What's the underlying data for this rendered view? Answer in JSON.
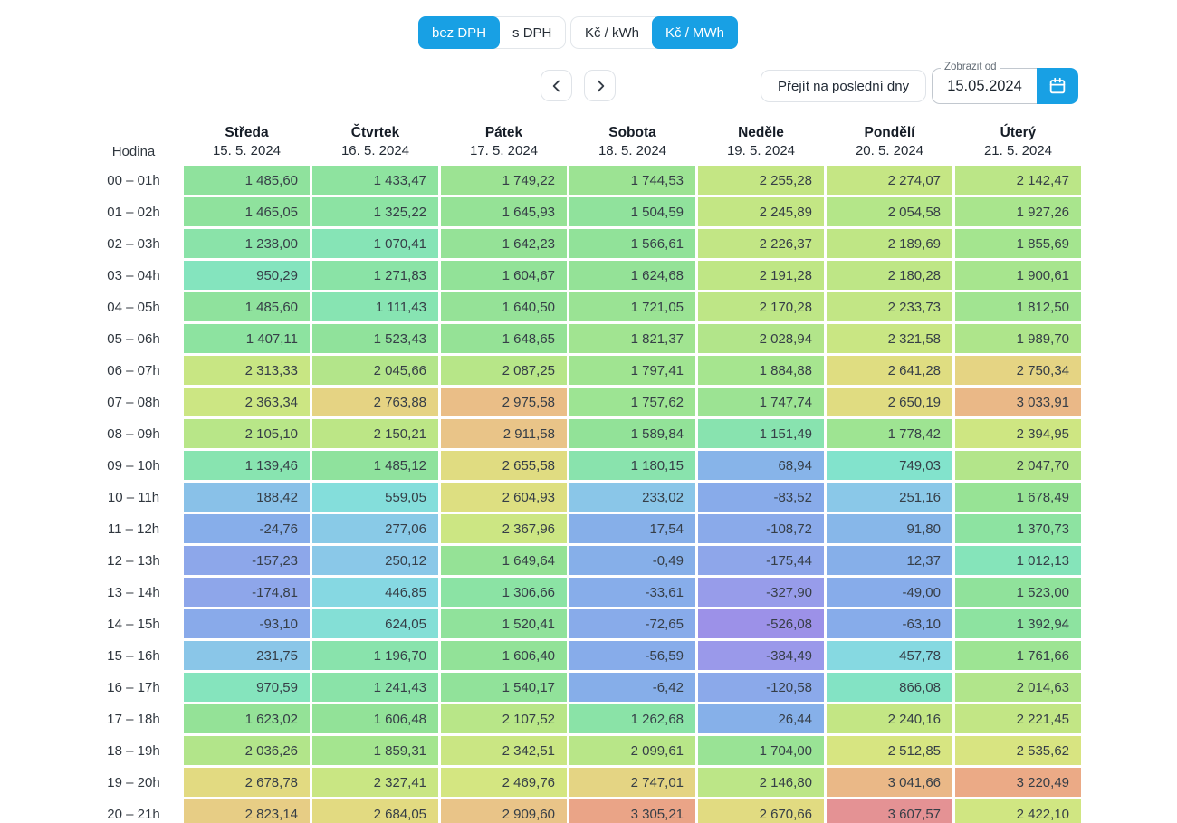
{
  "controls": {
    "vat_toggle": {
      "options": [
        "bez DPH",
        "s DPH"
      ],
      "active_index": 0
    },
    "unit_toggle": {
      "options": [
        "Kč / kWh",
        "Kč / MWh"
      ],
      "active_index": 1
    },
    "go_latest_button": "Přejít na poslední dny",
    "date_field": {
      "label": "Zobrazit od",
      "value": "15.05.2024"
    }
  },
  "table": {
    "hour_header": "Hodina",
    "days": [
      {
        "name": "Středa",
        "date": "15. 5. 2024"
      },
      {
        "name": "Čtvrtek",
        "date": "16. 5. 2024"
      },
      {
        "name": "Pátek",
        "date": "17. 5. 2024"
      },
      {
        "name": "Sobota",
        "date": "18. 5. 2024"
      },
      {
        "name": "Neděle",
        "date": "19. 5. 2024"
      },
      {
        "name": "Pondělí",
        "date": "20. 5. 2024"
      },
      {
        "name": "Úterý",
        "date": "21. 5. 2024"
      }
    ],
    "rows": [
      {
        "hour": "00 – 01h",
        "values": [
          "1 485,60",
          "1 433,47",
          "1 749,22",
          "1 744,53",
          "2 255,28",
          "2 274,07",
          "2 142,47"
        ]
      },
      {
        "hour": "01 – 02h",
        "values": [
          "1 465,05",
          "1 325,22",
          "1 645,93",
          "1 504,59",
          "2 245,89",
          "2 054,58",
          "1 927,26"
        ]
      },
      {
        "hour": "02 – 03h",
        "values": [
          "1 238,00",
          "1 070,41",
          "1 642,23",
          "1 566,61",
          "2 226,37",
          "2 189,69",
          "1 855,69"
        ]
      },
      {
        "hour": "03 – 04h",
        "values": [
          "950,29",
          "1 271,83",
          "1 604,67",
          "1 624,68",
          "2 191,28",
          "2 180,28",
          "1 900,61"
        ]
      },
      {
        "hour": "04 – 05h",
        "values": [
          "1 485,60",
          "1 111,43",
          "1 640,50",
          "1 721,05",
          "2 170,28",
          "2 233,73",
          "1 812,50"
        ]
      },
      {
        "hour": "05 – 06h",
        "values": [
          "1 407,11",
          "1 523,43",
          "1 648,65",
          "1 821,37",
          "2 028,94",
          "2 321,58",
          "1 989,70"
        ]
      },
      {
        "hour": "06 – 07h",
        "values": [
          "2 313,33",
          "2 045,66",
          "2 087,25",
          "1 797,41",
          "1 884,88",
          "2 641,28",
          "2 750,34"
        ]
      },
      {
        "hour": "07 – 08h",
        "values": [
          "2 363,34",
          "2 763,88",
          "2 975,58",
          "1 757,62",
          "1 747,74",
          "2 650,19",
          "3 033,91"
        ]
      },
      {
        "hour": "08 – 09h",
        "values": [
          "2 105,10",
          "2 150,21",
          "2 911,58",
          "1 589,84",
          "1 151,49",
          "1 778,42",
          "2 394,95"
        ]
      },
      {
        "hour": "09 – 10h",
        "values": [
          "1 139,46",
          "1 485,12",
          "2 655,58",
          "1 180,15",
          "68,94",
          "749,03",
          "2 047,70"
        ]
      },
      {
        "hour": "10 – 11h",
        "values": [
          "188,42",
          "559,05",
          "2 604,93",
          "233,02",
          "-83,52",
          "251,16",
          "1 678,49"
        ]
      },
      {
        "hour": "11 – 12h",
        "values": [
          "-24,76",
          "277,06",
          "2 367,96",
          "17,54",
          "-108,72",
          "91,80",
          "1 370,73"
        ]
      },
      {
        "hour": "12 – 13h",
        "values": [
          "-157,23",
          "250,12",
          "1 649,64",
          "-0,49",
          "-175,44",
          "12,37",
          "1 012,13"
        ]
      },
      {
        "hour": "13 – 14h",
        "values": [
          "-174,81",
          "446,85",
          "1 306,66",
          "-33,61",
          "-327,90",
          "-49,00",
          "1 523,00"
        ]
      },
      {
        "hour": "14 – 15h",
        "values": [
          "-93,10",
          "624,05",
          "1 520,41",
          "-72,65",
          "-526,08",
          "-63,10",
          "1 392,94"
        ]
      },
      {
        "hour": "15 – 16h",
        "values": [
          "231,75",
          "1 196,70",
          "1 606,40",
          "-56,59",
          "-384,49",
          "457,78",
          "1 761,66"
        ]
      },
      {
        "hour": "16 – 17h",
        "values": [
          "970,59",
          "1 241,43",
          "1 540,17",
          "-6,42",
          "-120,58",
          "866,08",
          "2 014,63"
        ]
      },
      {
        "hour": "17 – 18h",
        "values": [
          "1 623,02",
          "1 606,48",
          "2 107,52",
          "1 262,68",
          "26,44",
          "2 240,16",
          "2 221,45"
        ]
      },
      {
        "hour": "18 – 19h",
        "values": [
          "2 036,26",
          "1 859,31",
          "2 342,51",
          "2 099,61",
          "1 704,00",
          "2 512,85",
          "2 535,62"
        ]
      },
      {
        "hour": "19 – 20h",
        "values": [
          "2 678,78",
          "2 327,41",
          "2 469,76",
          "2 747,01",
          "2 146,80",
          "3 041,66",
          "3 220,49"
        ]
      },
      {
        "hour": "20 – 21h",
        "values": [
          "2 823,14",
          "2 684,05",
          "2 909,60",
          "3 305,21",
          "2 670,66",
          "3 607,57",
          "2 422,10"
        ]
      }
    ]
  },
  "colors": {
    "accent_blue": "#18a0e4",
    "heat_scale": [
      [
        -550,
        "#9c90e8"
      ],
      [
        -380,
        "#9a99ea"
      ],
      [
        -180,
        "#8ea6ea"
      ],
      [
        -60,
        "#87acea"
      ],
      [
        30,
        "#86b0e9"
      ],
      [
        250,
        "#8ac8e8"
      ],
      [
        500,
        "#85dce0"
      ],
      [
        750,
        "#82e3cc"
      ],
      [
        1000,
        "#85e4bb"
      ],
      [
        1300,
        "#8be3a4"
      ],
      [
        1600,
        "#92e298"
      ],
      [
        1900,
        "#a7e58e"
      ],
      [
        2200,
        "#c0e685"
      ],
      [
        2500,
        "#d6e681"
      ],
      [
        2700,
        "#e3d981"
      ],
      [
        2900,
        "#e9c588"
      ],
      [
        3100,
        "#ebb286"
      ],
      [
        3400,
        "#ea9e87"
      ],
      [
        3650,
        "#e39097"
      ]
    ]
  }
}
